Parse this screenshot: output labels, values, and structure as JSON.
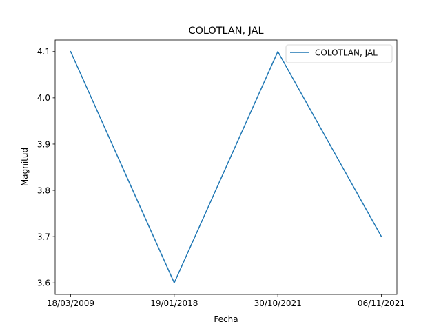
{
  "chart_data": {
    "type": "line",
    "title": "COLOTLAN, JAL",
    "xlabel": "Fecha",
    "ylabel": "Magnitud",
    "categories": [
      "18/03/2009",
      "19/01/2018",
      "30/10/2021",
      "06/11/2021"
    ],
    "series": [
      {
        "name": "COLOTLAN, JAL",
        "values": [
          4.1,
          3.6,
          4.1,
          3.7
        ],
        "color": "#1f77b4"
      }
    ],
    "ylim": [
      3.575,
      4.125
    ],
    "yticks": [
      {
        "value": 3.6,
        "label": "3.6"
      },
      {
        "value": 3.7,
        "label": "3.7"
      },
      {
        "value": 3.8,
        "label": "3.8"
      },
      {
        "value": 3.9,
        "label": "3.9"
      },
      {
        "value": 4.0,
        "label": "4.0"
      },
      {
        "value": 4.1,
        "label": "4.1"
      }
    ],
    "grid": false,
    "legend": "upper right"
  }
}
